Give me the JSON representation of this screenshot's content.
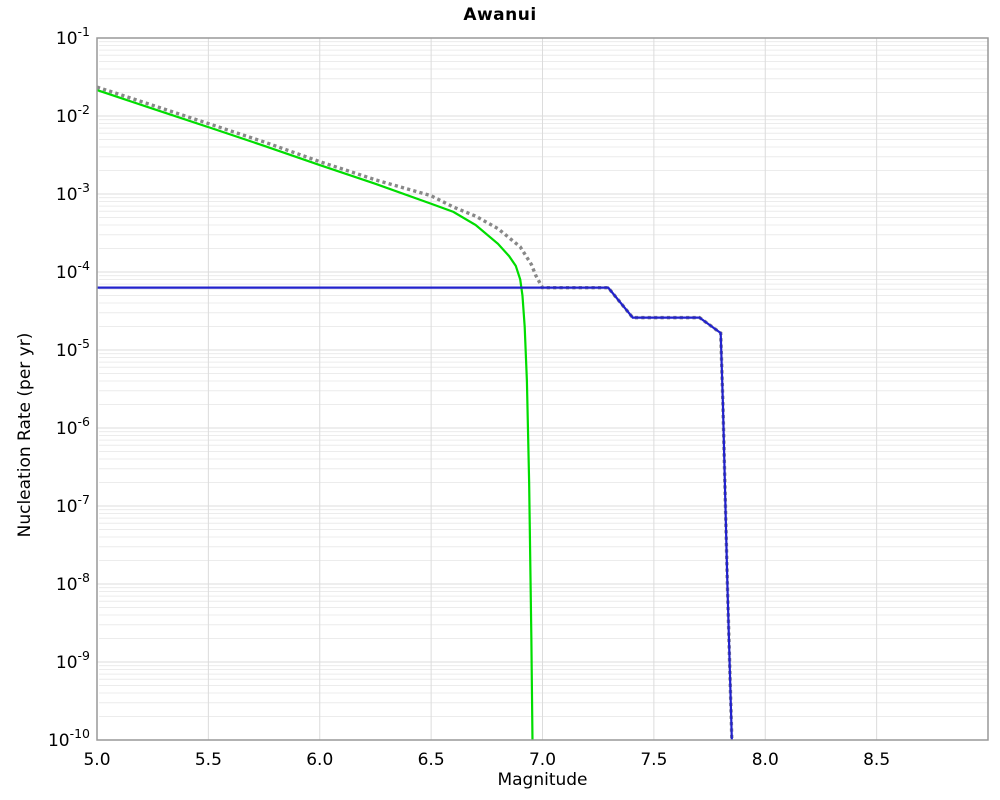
{
  "chart": {
    "title": "Awanui",
    "xlabel": "Magnitude",
    "ylabel": "Nucleation Rate (per yr)"
  },
  "chart_data": {
    "type": "line",
    "title": "Awanui",
    "xlabel": "Magnitude",
    "ylabel": "Nucleation Rate (per yr)",
    "y_scale": "log",
    "xlim": [
      5.0,
      9.0
    ],
    "ylim": [
      1e-10,
      0.1
    ],
    "grid": true,
    "legend": "none",
    "colors": {
      "grid_minor": "#ececec",
      "grid_major": "#dcdcdc",
      "border": "#999999",
      "green": "#00dd00",
      "blue": "#2222cc",
      "gray": "#888888"
    },
    "x_ticks": [
      {
        "value": 5.0,
        "label": "5.0"
      },
      {
        "value": 5.5,
        "label": "5.5"
      },
      {
        "value": 6.0,
        "label": "6.0"
      },
      {
        "value": 6.5,
        "label": "6.5"
      },
      {
        "value": 7.0,
        "label": "7.0"
      },
      {
        "value": 7.5,
        "label": "7.5"
      },
      {
        "value": 8.0,
        "label": "8.0"
      },
      {
        "value": 8.5,
        "label": "8.5"
      }
    ],
    "y_ticks": [
      {
        "value": 0.1,
        "base": "10",
        "exponent": "-1"
      },
      {
        "value": 0.01,
        "base": "10",
        "exponent": "-2"
      },
      {
        "value": 0.001,
        "base": "10",
        "exponent": "-3"
      },
      {
        "value": 0.0001,
        "base": "10",
        "exponent": "-4"
      },
      {
        "value": 1e-05,
        "base": "10",
        "exponent": "-5"
      },
      {
        "value": 1e-06,
        "base": "10",
        "exponent": "-6"
      },
      {
        "value": 1e-07,
        "base": "10",
        "exponent": "-7"
      },
      {
        "value": 1e-08,
        "base": "10",
        "exponent": "-8"
      },
      {
        "value": 1e-09,
        "base": "10",
        "exponent": "-9"
      },
      {
        "value": 1e-10,
        "base": "10",
        "exponent": "-10"
      }
    ],
    "series": [
      {
        "name": "gray-dotted-total-rate",
        "style": "dotted",
        "color": "#888888",
        "width": 3.4,
        "points": [
          [
            5.0,
            0.0235
          ],
          [
            5.25,
            0.0137
          ],
          [
            5.5,
            0.008
          ],
          [
            5.75,
            0.00465
          ],
          [
            6.0,
            0.0026
          ],
          [
            6.25,
            0.00152
          ],
          [
            6.5,
            0.00095
          ],
          [
            6.6,
            0.00068
          ],
          [
            6.7,
            0.00052
          ],
          [
            6.8,
            0.00036
          ],
          [
            6.9,
            0.00021
          ],
          [
            6.95,
            0.000125
          ],
          [
            6.97,
            9e-05
          ],
          [
            7.0,
            6.3e-05
          ],
          [
            7.295,
            6.3e-05
          ],
          [
            7.405,
            2.6e-05
          ],
          [
            7.705,
            2.6e-05
          ],
          [
            7.8,
            1.65e-05
          ],
          [
            7.81,
            2e-06
          ],
          [
            7.83,
            1e-08
          ],
          [
            7.85,
            1e-10
          ]
        ]
      },
      {
        "name": "green-solid-gr-branch",
        "style": "solid",
        "color": "#00dd00",
        "width": 2.2,
        "points": [
          [
            5.0,
            0.0215
          ],
          [
            5.25,
            0.0124
          ],
          [
            5.5,
            0.0072
          ],
          [
            5.75,
            0.00415
          ],
          [
            6.0,
            0.00235
          ],
          [
            6.25,
            0.00135
          ],
          [
            6.5,
            0.00075
          ],
          [
            6.6,
            0.00059
          ],
          [
            6.7,
            0.0004
          ],
          [
            6.8,
            0.00023
          ],
          [
            6.85,
            0.00016
          ],
          [
            6.88,
            0.00012
          ],
          [
            6.9,
            8e-05
          ],
          [
            6.91,
            5e-05
          ],
          [
            6.92,
            2e-05
          ],
          [
            6.93,
            4e-06
          ],
          [
            6.94,
            2e-07
          ],
          [
            6.95,
            2e-09
          ],
          [
            6.955,
            1e-10
          ]
        ]
      },
      {
        "name": "blue-solid-characteristic-branch",
        "style": "solid",
        "color": "#2222cc",
        "width": 2.2,
        "points": [
          [
            5.0,
            6.3e-05
          ],
          [
            7.295,
            6.3e-05
          ],
          [
            7.405,
            2.6e-05
          ],
          [
            7.705,
            2.6e-05
          ],
          [
            7.8,
            1.65e-05
          ],
          [
            7.81,
            2e-06
          ],
          [
            7.83,
            1e-08
          ],
          [
            7.85,
            1e-10
          ]
        ]
      }
    ]
  }
}
